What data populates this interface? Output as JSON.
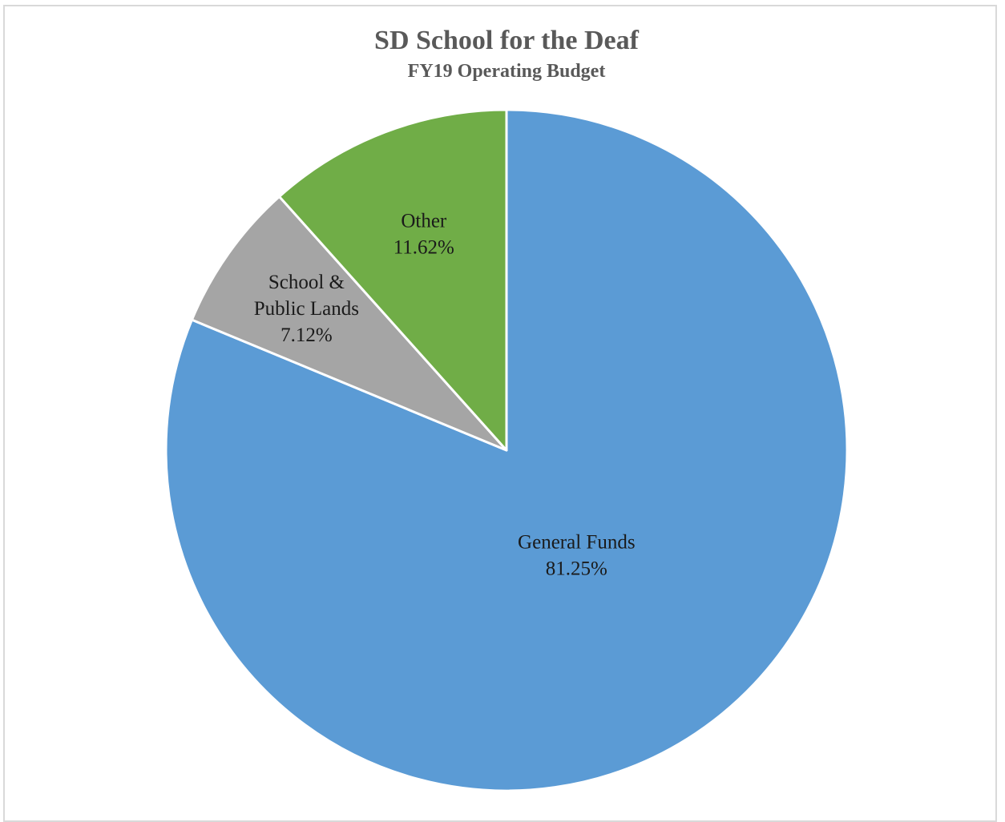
{
  "chart_data": {
    "type": "pie",
    "title": "SD School for the Deaf",
    "subtitle": "FY19 Operating Budget",
    "start_angle_deg": 0,
    "direction": "clockwise",
    "legend": "none",
    "slices": [
      {
        "name": "General Funds",
        "value": 81.25,
        "value_label": "81.25%",
        "label_lines": [
          "General Funds"
        ],
        "color": "#5b9bd5"
      },
      {
        "name": "School & Public Lands",
        "value": 7.12,
        "value_label": "7.12%",
        "label_lines": [
          "School &",
          "Public Lands"
        ],
        "color": "#a5a5a5"
      },
      {
        "name": "Other",
        "value": 11.62,
        "value_label": "11.62%",
        "label_lines": [
          "Other"
        ],
        "color": "#70ad47"
      }
    ]
  }
}
